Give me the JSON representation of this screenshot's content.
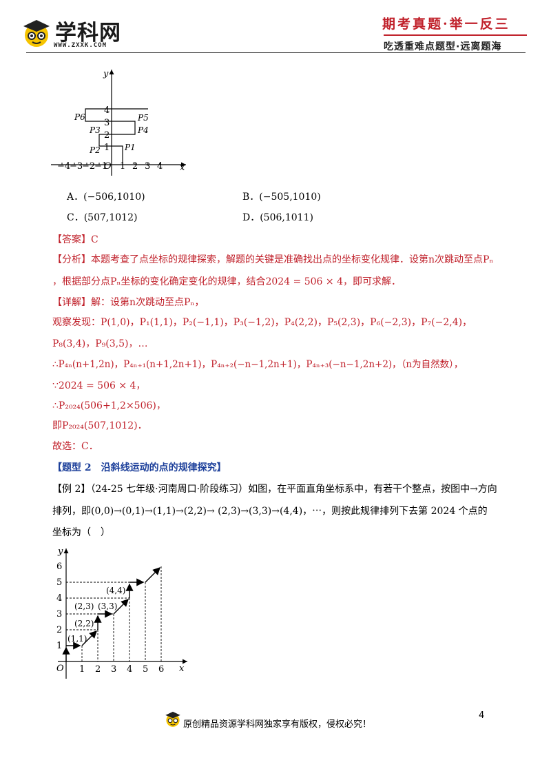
{
  "header": {
    "logo_text": "学科网",
    "logo_url": "WWW.ZXXK.COM",
    "slogan_top": "期考真题·举一反三",
    "slogan_bottom": "吃透重难点题型·远离题海"
  },
  "figure1": {
    "x_label": "x",
    "y_label": "y",
    "origin": "O",
    "x_ticks": [
      "−4",
      "−3",
      "−2",
      "−1",
      "1",
      "2",
      "3",
      "4"
    ],
    "y_ticks": [
      "1",
      "2",
      "3",
      "4"
    ],
    "points": [
      "P1",
      "P2",
      "P3",
      "P4",
      "P5",
      "P6"
    ]
  },
  "options": {
    "A": "A．(−506,1010)",
    "B": "B．(−505,1010)",
    "C": "C．(507,1012)",
    "D": "D．(506,1011)"
  },
  "answer": "【答案】C",
  "analysis_1": "【分析】本题考查了点坐标的规律探索，解题的关键是准确找出点的坐标变化规律．设第n次跳动至点Pₙ",
  "analysis_2": "，根据部分点Pₙ坐标的变化确定变化的规律，结合2024 = 506 × 4，即可求解．",
  "detail_1": "【详解】解：设第n次跳动至点Pₙ，",
  "detail_2": "观察发现：P(1,0)，P₁(1,1)，P₂(−1,1)，P₃(−1,2)，P₄(2,2)，P₅(2,3)，P₆(−2,3)，P₇(−2,4)，",
  "detail_3": "P₈(3,4)，P₉(3,5)，…",
  "detail_4": "∴P₄ₙ(n+1,2n)，P₄ₙ₊₁(n+1,2n+1)，P₄ₙ₊₂(−n−1,2n+1)，P₄ₙ₊₃(−n−1,2n+2)，（n为自然数），",
  "detail_5": "∵2024 = 506 × 4，",
  "detail_6": "∴P₂₀₂₄(506+1,2×506)，",
  "detail_7": "即P₂₀₂₄(507,1012)．",
  "detail_8": "故选：C．",
  "section_title": "【题型 2　沿斜线运动的点的规律探究】",
  "example_1": "【例 2】（24-25 七年级·河南周口·阶段练习）如图，在平面直角坐标系中，有若干个整点，按图中→方向",
  "example_2": "排列，即(0,0)→(0,1)→(1,1)→(2,2)→ (2,3)→(3,3)→(4,4)，⋯，则按此规律排列下去第 2024 个点的",
  "example_3": "坐标为（　）",
  "figure2": {
    "x_label": "x",
    "y_label": "y",
    "origin": "O",
    "x_ticks": [
      "1",
      "2",
      "3",
      "4",
      "5",
      "6"
    ],
    "y_ticks": [
      "1",
      "2",
      "3",
      "4",
      "5",
      "6"
    ],
    "labels": [
      "(1,1)",
      "(2,2)",
      "(2,3)",
      "(3,3)",
      "(4,4)"
    ]
  },
  "page_number": "4",
  "footer_text": "原创精品资源学科网独家享有版权，侵权必究！"
}
